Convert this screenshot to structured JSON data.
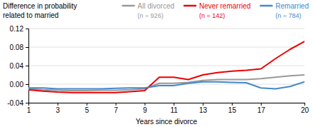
{
  "chart_data": {
    "type": "line",
    "title": "Difference in probability",
    "subtitle": "related to married",
    "xlabel": "Years since divorce",
    "x": [
      1,
      2,
      3,
      4,
      5,
      6,
      7,
      8,
      9,
      10,
      11,
      12,
      13,
      14,
      15,
      16,
      17,
      18,
      19,
      20
    ],
    "xlim": [
      1,
      20
    ],
    "xticks": [
      1,
      3,
      5,
      7,
      9,
      11,
      13,
      15,
      17,
      20
    ],
    "ylim": [
      -0.04,
      0.12
    ],
    "yticks": [
      -0.04,
      {
        "value": 0,
        "label": "0.00"
      },
      0.04,
      0.08,
      0.12
    ],
    "grid": true,
    "legend": "top",
    "annotations": [
      "(n = 926)",
      "(n = 142)",
      "(n = 784)"
    ],
    "series": [
      {
        "name": "All divorced",
        "color": "#999999",
        "values": [
          -0.01,
          -0.012,
          -0.013,
          -0.014,
          -0.014,
          -0.013,
          -0.013,
          -0.012,
          -0.01,
          0.002,
          0.002,
          0.004,
          0.008,
          0.01,
          0.01,
          0.01,
          0.012,
          0.015,
          0.018,
          0.02
        ]
      },
      {
        "name": "Never remarried",
        "color": "#ee0000",
        "values": [
          -0.012,
          -0.015,
          -0.017,
          -0.018,
          -0.018,
          -0.018,
          -0.018,
          -0.016,
          -0.014,
          0.015,
          0.015,
          0.01,
          0.02,
          0.025,
          0.028,
          0.03,
          0.033,
          0.055,
          0.075,
          0.092
        ]
      },
      {
        "name": "Remarried",
        "color": "#4488cc",
        "values": [
          -0.008,
          -0.008,
          -0.01,
          -0.01,
          -0.01,
          -0.01,
          -0.009,
          -0.008,
          -0.008,
          -0.003,
          -0.003,
          0.002,
          0.005,
          0.005,
          0.004,
          0.003,
          -0.008,
          -0.01,
          -0.005,
          0.005
        ]
      }
    ]
  }
}
